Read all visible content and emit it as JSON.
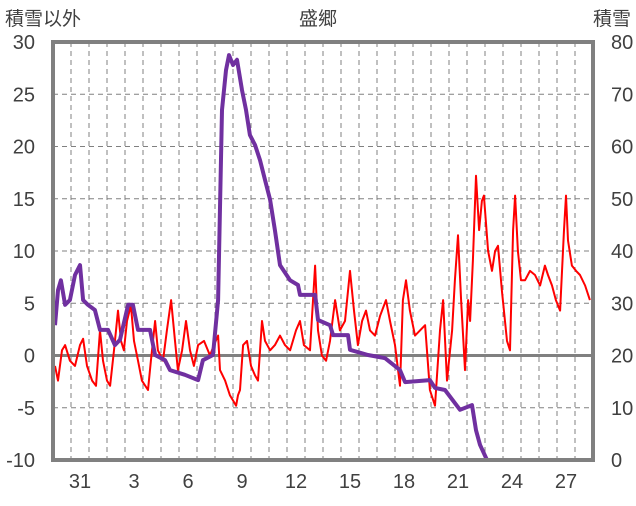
{
  "chart_data": {
    "type": "line",
    "title": "盛郷",
    "ylabel_left": "積雪以外",
    "ylabel_right": "積雪",
    "ylim_left": [
      -10,
      30
    ],
    "ylim_right": [
      0,
      80
    ],
    "yticks_left": [
      "30",
      "25",
      "20",
      "15",
      "10",
      "5",
      "0",
      "-5",
      "-10"
    ],
    "yticks_right": [
      "80",
      "70",
      "60",
      "50",
      "40",
      "30",
      "20",
      "10",
      "0"
    ],
    "x_days": [
      "30",
      "31",
      "1",
      "2",
      "3",
      "4",
      "5",
      "6",
      "7",
      "8",
      "9",
      "10",
      "11",
      "12",
      "13",
      "14",
      "15",
      "16",
      "17",
      "18",
      "19",
      "20",
      "21",
      "22",
      "23",
      "24",
      "25",
      "26",
      "27",
      "28"
    ],
    "xtick_labels": [
      {
        "day_index": 1,
        "label": "31"
      },
      {
        "day_index": 4,
        "label": "3"
      },
      {
        "day_index": 7,
        "label": "6"
      },
      {
        "day_index": 10,
        "label": "9"
      },
      {
        "day_index": 13,
        "label": "12"
      },
      {
        "day_index": 16,
        "label": "15"
      },
      {
        "day_index": 19,
        "label": "18"
      },
      {
        "day_index": 22,
        "label": "21"
      },
      {
        "day_index": 25,
        "label": "24"
      },
      {
        "day_index": 28,
        "label": "27"
      }
    ],
    "grid": true,
    "series": [
      {
        "name": "積雪以外",
        "axis": "left",
        "color": "#ff0000",
        "points": [
          [
            0.11,
            -1.0
          ],
          [
            0.28,
            -2.4
          ],
          [
            0.5,
            0.5
          ],
          [
            0.67,
            1.0
          ],
          [
            0.94,
            -0.5
          ],
          [
            1.22,
            -1.0
          ],
          [
            1.5,
            1.0
          ],
          [
            1.67,
            1.6
          ],
          [
            1.89,
            -1.0
          ],
          [
            2.17,
            -2.4
          ],
          [
            2.39,
            -2.9
          ],
          [
            2.61,
            2.4
          ],
          [
            2.78,
            -0.5
          ],
          [
            3.0,
            -2.4
          ],
          [
            3.17,
            -2.9
          ],
          [
            3.39,
            0.5
          ],
          [
            3.61,
            4.3
          ],
          [
            3.78,
            1.4
          ],
          [
            3.94,
            0.5
          ],
          [
            4.11,
            3.3
          ],
          [
            4.33,
            4.8
          ],
          [
            4.5,
            1.4
          ],
          [
            4.72,
            -0.5
          ],
          [
            4.94,
            -2.4
          ],
          [
            5.28,
            -3.3
          ],
          [
            5.44,
            -0.5
          ],
          [
            5.67,
            3.3
          ],
          [
            5.83,
            0.5
          ],
          [
            6.11,
            -0.5
          ],
          [
            6.33,
            2.4
          ],
          [
            6.56,
            5.3
          ],
          [
            6.78,
            1.4
          ],
          [
            6.94,
            -1.4
          ],
          [
            7.17,
            0.5
          ],
          [
            7.39,
            3.3
          ],
          [
            7.61,
            0.5
          ],
          [
            7.83,
            -1.0
          ],
          [
            8.06,
            1.0
          ],
          [
            8.39,
            1.4
          ],
          [
            8.72,
            0
          ],
          [
            8.94,
            1.0
          ],
          [
            9.17,
            1.9
          ],
          [
            9.28,
            -1.4
          ],
          [
            9.56,
            -2.4
          ],
          [
            9.83,
            -3.8
          ],
          [
            10.0,
            -4.3
          ],
          [
            10.17,
            -4.8
          ],
          [
            10.28,
            -3.8
          ],
          [
            10.39,
            -3.3
          ],
          [
            10.56,
            1.0
          ],
          [
            10.78,
            1.4
          ],
          [
            11.0,
            -1.0
          ],
          [
            11.22,
            -1.9
          ],
          [
            11.39,
            -2.4
          ],
          [
            11.61,
            3.3
          ],
          [
            11.78,
            1.4
          ],
          [
            12.06,
            0.5
          ],
          [
            12.33,
            1.0
          ],
          [
            12.61,
            1.9
          ],
          [
            12.89,
            1.0
          ],
          [
            13.17,
            0.5
          ],
          [
            13.5,
            2.4
          ],
          [
            13.72,
            3.3
          ],
          [
            13.94,
            1.0
          ],
          [
            14.28,
            0.5
          ],
          [
            14.56,
            8.6
          ],
          [
            14.72,
            2.4
          ],
          [
            14.94,
            0
          ],
          [
            15.17,
            -0.5
          ],
          [
            15.39,
            1.4
          ],
          [
            15.67,
            5.3
          ],
          [
            15.94,
            2.4
          ],
          [
            16.22,
            3.3
          ],
          [
            16.5,
            8.1
          ],
          [
            16.72,
            4.3
          ],
          [
            16.94,
            1.0
          ],
          [
            17.17,
            3.3
          ],
          [
            17.39,
            4.3
          ],
          [
            17.61,
            2.4
          ],
          [
            17.89,
            1.9
          ],
          [
            18.17,
            3.8
          ],
          [
            18.5,
            5.3
          ],
          [
            18.72,
            3.3
          ],
          [
            19.0,
            1.0
          ],
          [
            19.28,
            -2.9
          ],
          [
            19.44,
            5.3
          ],
          [
            19.61,
            7.2
          ],
          [
            19.83,
            4.3
          ],
          [
            20.11,
            1.9
          ],
          [
            20.39,
            2.4
          ],
          [
            20.67,
            2.9
          ],
          [
            20.94,
            -3.3
          ],
          [
            21.22,
            -4.8
          ],
          [
            21.5,
            2.4
          ],
          [
            21.67,
            5.3
          ],
          [
            21.89,
            -2.4
          ],
          [
            22.17,
            2.4
          ],
          [
            22.33,
            7.2
          ],
          [
            22.5,
            11.5
          ],
          [
            22.67,
            5.3
          ],
          [
            22.89,
            -1.4
          ],
          [
            23.06,
            5.3
          ],
          [
            23.17,
            3.3
          ],
          [
            23.33,
            9.1
          ],
          [
            23.5,
            17.2
          ],
          [
            23.67,
            12.0
          ],
          [
            23.83,
            14.8
          ],
          [
            23.94,
            15.3
          ],
          [
            24.17,
            10.0
          ],
          [
            24.39,
            8.1
          ],
          [
            24.56,
            10.0
          ],
          [
            24.72,
            10.5
          ],
          [
            24.94,
            6.2
          ],
          [
            25.22,
            1.4
          ],
          [
            25.39,
            0.5
          ],
          [
            25.56,
            12.0
          ],
          [
            25.67,
            15.3
          ],
          [
            25.83,
            10.0
          ],
          [
            26.0,
            7.2
          ],
          [
            26.22,
            7.2
          ],
          [
            26.5,
            8.1
          ],
          [
            26.78,
            7.7
          ],
          [
            27.06,
            6.7
          ],
          [
            27.33,
            8.6
          ],
          [
            27.5,
            7.7
          ],
          [
            27.72,
            6.7
          ],
          [
            27.94,
            5.3
          ],
          [
            28.17,
            4.3
          ],
          [
            28.39,
            12.0
          ],
          [
            28.5,
            15.3
          ],
          [
            28.61,
            11.0
          ],
          [
            28.83,
            8.6
          ],
          [
            29.06,
            8.1
          ],
          [
            29.28,
            7.7
          ],
          [
            29.56,
            6.7
          ],
          [
            29.83,
            5.3
          ]
        ]
      },
      {
        "name": "積雪",
        "axis": "right",
        "color": "#7030a0",
        "points": [
          [
            0.11,
            25.8
          ],
          [
            0.28,
            32.5
          ],
          [
            0.44,
            34.4
          ],
          [
            0.67,
            29.7
          ],
          [
            0.94,
            30.6
          ],
          [
            1.22,
            35.4
          ],
          [
            1.5,
            37.3
          ],
          [
            1.67,
            30.6
          ],
          [
            1.94,
            29.7
          ],
          [
            2.33,
            28.7
          ],
          [
            2.61,
            24.9
          ],
          [
            3.06,
            24.9
          ],
          [
            3.44,
            22.0
          ],
          [
            3.72,
            23.0
          ],
          [
            4.17,
            29.7
          ],
          [
            4.44,
            29.7
          ],
          [
            4.72,
            24.9
          ],
          [
            5.39,
            24.9
          ],
          [
            5.67,
            20.1
          ],
          [
            6.22,
            19.1
          ],
          [
            6.5,
            17.2
          ],
          [
            7.33,
            16.3
          ],
          [
            8.06,
            15.3
          ],
          [
            8.33,
            19.1
          ],
          [
            8.89,
            20.1
          ],
          [
            9.17,
            30.6
          ],
          [
            9.39,
            67.0
          ],
          [
            9.61,
            74.6
          ],
          [
            9.78,
            77.5
          ],
          [
            10.0,
            75.6
          ],
          [
            10.22,
            76.6
          ],
          [
            10.5,
            70.8
          ],
          [
            10.72,
            67.0
          ],
          [
            10.94,
            62.2
          ],
          [
            11.22,
            60.3
          ],
          [
            11.5,
            57.4
          ],
          [
            11.78,
            53.6
          ],
          [
            12.06,
            49.8
          ],
          [
            12.33,
            44.0
          ],
          [
            12.61,
            37.3
          ],
          [
            13.17,
            34.4
          ],
          [
            13.61,
            33.5
          ],
          [
            13.72,
            31.6
          ],
          [
            14.56,
            31.6
          ],
          [
            14.72,
            26.8
          ],
          [
            15.39,
            25.8
          ],
          [
            15.56,
            23.9
          ],
          [
            16.39,
            23.9
          ],
          [
            16.5,
            21.1
          ],
          [
            17.5,
            20.1
          ],
          [
            18.44,
            19.5
          ],
          [
            19.28,
            17.2
          ],
          [
            19.56,
            14.9
          ],
          [
            20.94,
            15.3
          ],
          [
            21.22,
            13.8
          ],
          [
            21.78,
            13.4
          ],
          [
            22.61,
            9.6
          ],
          [
            23.28,
            10.5
          ],
          [
            23.5,
            5.7
          ],
          [
            23.72,
            2.9
          ],
          [
            24.11,
            0
          ],
          [
            30,
            0
          ]
        ]
      }
    ]
  }
}
